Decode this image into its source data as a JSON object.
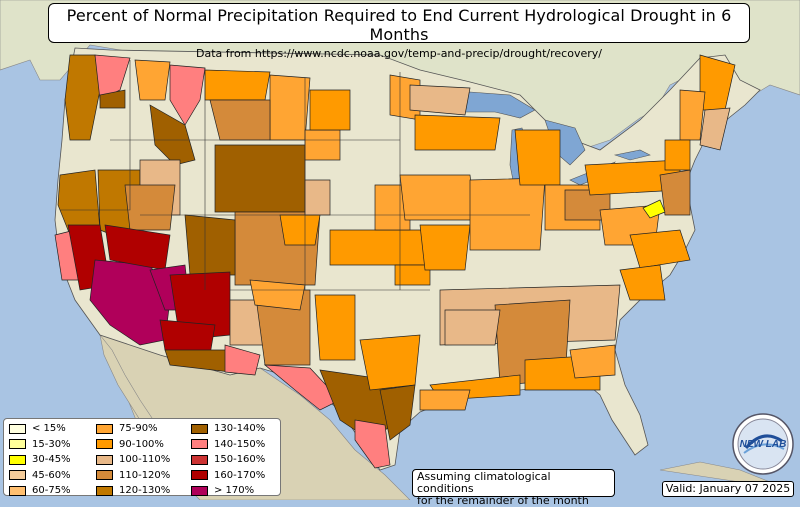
{
  "title": "Percent of Normal Precipitation Required to End Current Hydrological Drought in 6 Months",
  "subtitle": "Data from https://www.ncdc.noaa.gov/temp-and-precip/drought/recovery/",
  "note_lines": [
    "Assuming climatological conditions",
    "for the remainder of the month"
  ],
  "valid": "Valid: January 07 2025",
  "logo_text": "NEW LAB",
  "colors": {
    "ocean": "#a9c4e3",
    "land": "#e9e6cf",
    "lakes": "#7fa6d3",
    "mexico": "#d9d2b4",
    "canada": "#dfe3c9"
  },
  "legend": [
    {
      "label": "< 15%",
      "color": "#ffffe0"
    },
    {
      "label": "15-30%",
      "color": "#ffff9a"
    },
    {
      "label": "30-45%",
      "color": "#ffff00"
    },
    {
      "label": "45-60%",
      "color": "#f5cc9a"
    },
    {
      "label": "60-75%",
      "color": "#ffbf70"
    },
    {
      "label": "75-90%",
      "color": "#ffa533"
    },
    {
      "label": "90-100%",
      "color": "#ff9a00"
    },
    {
      "label": "100-110%",
      "color": "#e8b888"
    },
    {
      "label": "110-120%",
      "color": "#d48a3a"
    },
    {
      "label": "120-130%",
      "color": "#c07800"
    },
    {
      "label": "130-140%",
      "color": "#a06000"
    },
    {
      "label": "140-150%",
      "color": "#ff7f7f"
    },
    {
      "label": "150-160%",
      "color": "#cc3333"
    },
    {
      "label": "160-170%",
      "color": "#b00000"
    },
    {
      "label": "> 170%",
      "color": "#b0005a"
    }
  ]
}
